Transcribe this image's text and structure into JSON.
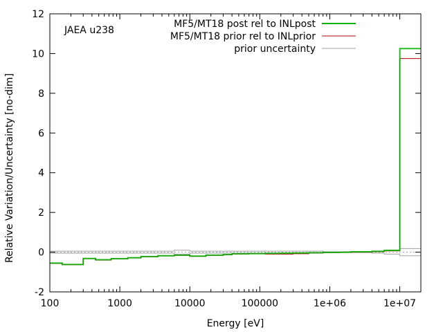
{
  "chart_data": {
    "type": "line",
    "annotation": "JAEA u238",
    "xlabel": "Energy [eV]",
    "ylabel": "Relative Variation/Uncertainty [no-dim]",
    "xscale": "log",
    "xlim": [
      100,
      20000000
    ],
    "ylim": [
      -2,
      12
    ],
    "x_ticks": [
      {
        "value": 100,
        "label": "100"
      },
      {
        "value": 1000,
        "label": "1000"
      },
      {
        "value": 10000,
        "label": "10000"
      },
      {
        "value": 100000,
        "label": "100000"
      },
      {
        "value": 1000000,
        "label": "1e+06"
      },
      {
        "value": 10000000,
        "label": "1e+07"
      }
    ],
    "y_ticks": [
      {
        "value": -2,
        "label": "-2"
      },
      {
        "value": 0,
        "label": "0"
      },
      {
        "value": 2,
        "label": "2"
      },
      {
        "value": 4,
        "label": "4"
      },
      {
        "value": 6,
        "label": "6"
      },
      {
        "value": 8,
        "label": "8"
      },
      {
        "value": 10,
        "label": "10"
      },
      {
        "value": 12,
        "label": "12"
      }
    ],
    "grid": false,
    "legend_position": "top-right",
    "series": [
      {
        "name": "MF5/MT18 post rel to INLpost",
        "color": "#00b000",
        "style": "thick-step",
        "x": [
          100,
          150,
          300,
          450,
          750,
          1300,
          2000,
          3500,
          6000,
          10000,
          17000,
          30000,
          40000,
          70000,
          120000,
          200000,
          300000,
          500000,
          800000,
          1400000,
          2000000,
          4000000,
          6000000,
          10000000,
          20000000
        ],
        "y": [
          -0.55,
          -0.62,
          -0.32,
          -0.38,
          -0.33,
          -0.28,
          -0.22,
          -0.18,
          -0.15,
          -0.2,
          -0.15,
          -0.12,
          -0.08,
          -0.07,
          -0.06,
          -0.05,
          -0.04,
          -0.03,
          -0.01,
          0.0,
          0.02,
          0.04,
          0.09,
          10.25,
          10.25
        ]
      },
      {
        "name": "MF5/MT18 prior rel to INLprior",
        "color": "#b00000",
        "style": "thin-step",
        "x": [
          100,
          150,
          300,
          450,
          750,
          1300,
          2000,
          3500,
          6000,
          10000,
          17000,
          30000,
          40000,
          70000,
          120000,
          200000,
          300000,
          500000,
          800000,
          1400000,
          2000000,
          4000000,
          6000000,
          10000000,
          20000000
        ],
        "y": [
          -0.57,
          -0.63,
          -0.33,
          -0.4,
          -0.34,
          -0.29,
          -0.23,
          -0.19,
          -0.16,
          -0.21,
          -0.16,
          -0.13,
          -0.09,
          -0.08,
          -0.1,
          -0.1,
          -0.08,
          -0.05,
          -0.02,
          0.0,
          0.0,
          0.02,
          0.06,
          9.75,
          9.75
        ]
      },
      {
        "name": "prior uncertainty",
        "color": "#a0a0a0",
        "style": "band",
        "x": [
          100,
          150,
          300,
          450,
          750,
          1300,
          2000,
          3500,
          6000,
          10000,
          17000,
          30000,
          40000,
          70000,
          120000,
          200000,
          300000,
          500000,
          800000,
          1400000,
          2000000,
          4000000,
          6000000,
          10000000,
          20000000
        ],
        "y": [
          0.05,
          0.05,
          0.05,
          0.05,
          0.05,
          0.05,
          0.05,
          0.05,
          0.1,
          0.05,
          0.05,
          0.05,
          0.05,
          0.05,
          0.05,
          0.05,
          0.05,
          0.05,
          0.02,
          0.02,
          0.02,
          0.05,
          0.1,
          0.18,
          0.18
        ]
      }
    ]
  }
}
